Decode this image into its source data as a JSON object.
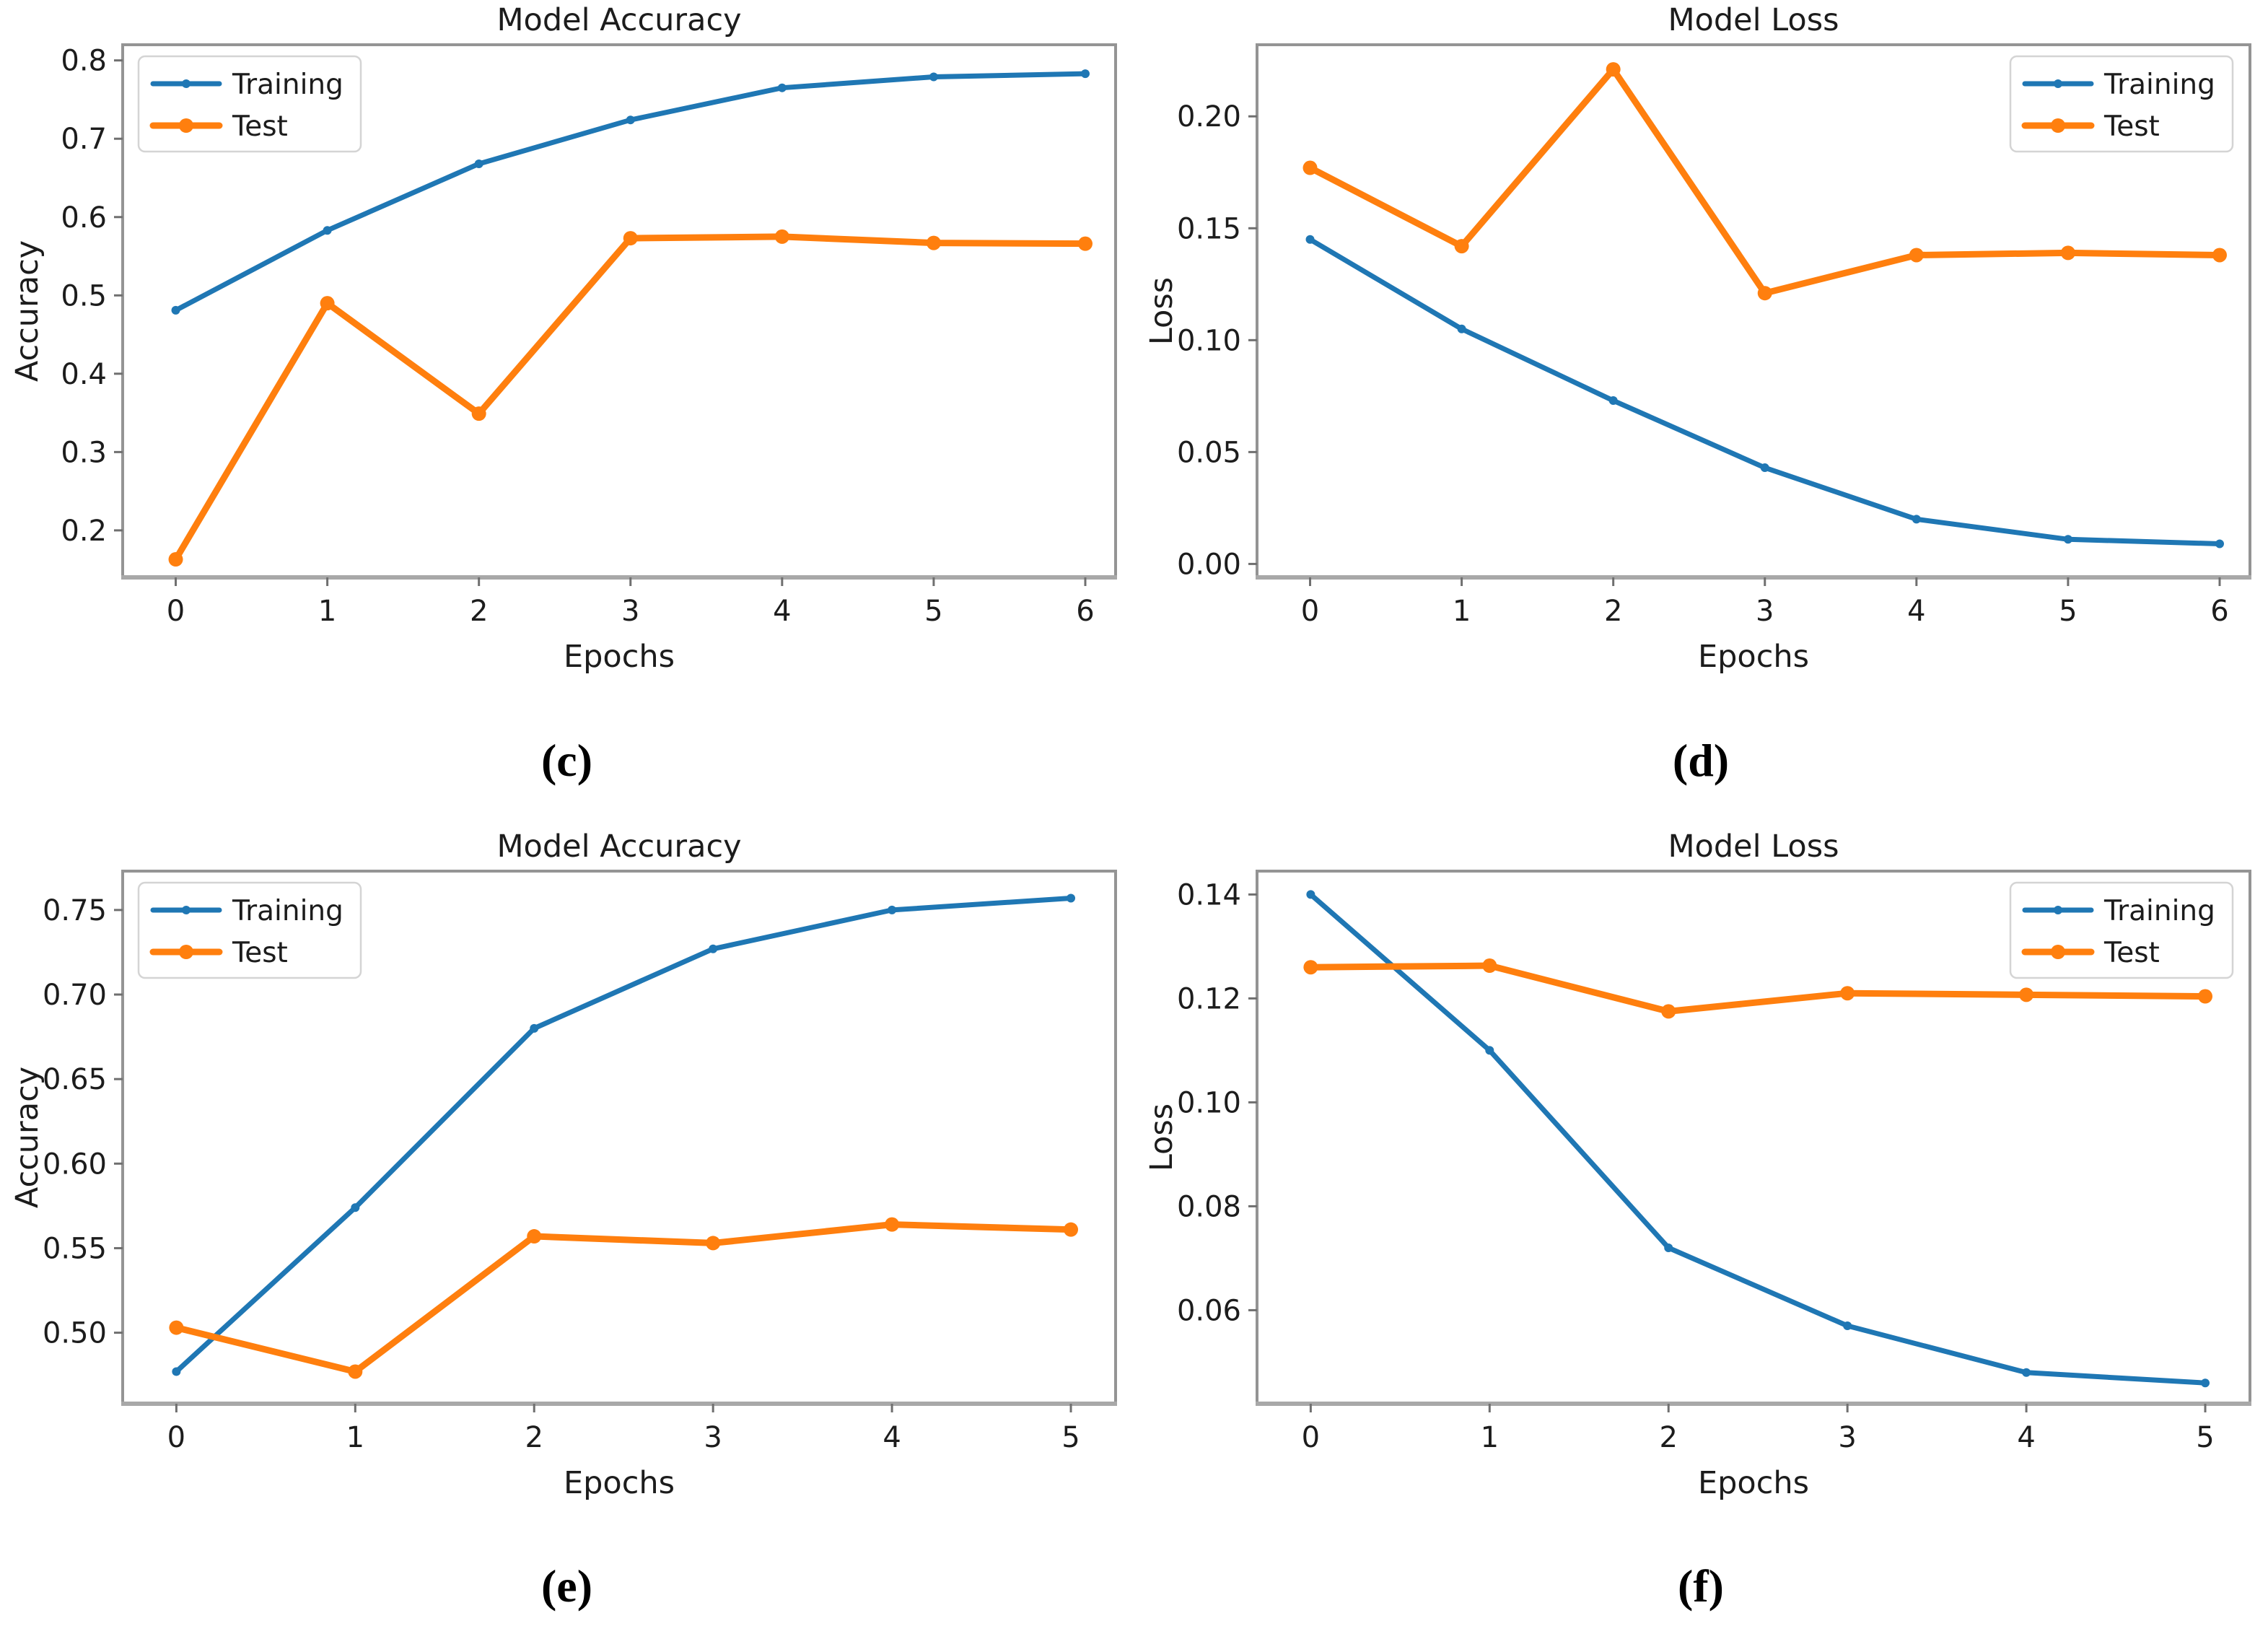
{
  "figure": {
    "background": "#ffffff",
    "text_color": "#1c1c1c",
    "spine_color": "#949494",
    "legend_border_color": "#d4d4d4",
    "training_color": "#1f77b4",
    "test_color": "#ff7f0e"
  },
  "chart_data": [
    {
      "type": "line",
      "panel": "c",
      "caption": "(c)",
      "title": "Model Accuracy",
      "xlabel": "Epochs",
      "ylabel": "Accuracy",
      "grid": false,
      "legend": {
        "position": "top-left",
        "entries": [
          "Training",
          "Test"
        ]
      },
      "x": [
        0,
        1,
        2,
        3,
        4,
        5,
        6
      ],
      "xtick_labels": [
        "0",
        "1",
        "2",
        "3",
        "4",
        "5",
        "6"
      ],
      "ytick_values": [
        0.2,
        0.3,
        0.4,
        0.5,
        0.6,
        0.7,
        0.8
      ],
      "ytick_labels": [
        "0.2",
        "0.3",
        "0.4",
        "0.5",
        "0.6",
        "0.7",
        "0.8"
      ],
      "xlim": [
        -0.35,
        6.2
      ],
      "ylim": [
        0.14,
        0.82
      ],
      "series": [
        {
          "name": "Training",
          "color": "#1f77b4",
          "values": [
            0.481,
            0.583,
            0.668,
            0.724,
            0.765,
            0.779,
            0.783
          ]
        },
        {
          "name": "Test",
          "color": "#ff7f0e",
          "values": [
            0.163,
            0.49,
            0.349,
            0.573,
            0.575,
            0.567,
            0.566
          ]
        }
      ]
    },
    {
      "type": "line",
      "panel": "d",
      "caption": "(d)",
      "title": "Model Loss",
      "xlabel": "Epochs",
      "ylabel": "Loss",
      "grid": false,
      "legend": {
        "position": "top-right",
        "entries": [
          "Training",
          "Test"
        ]
      },
      "x": [
        0,
        1,
        2,
        3,
        4,
        5,
        6
      ],
      "xtick_labels": [
        "0",
        "1",
        "2",
        "3",
        "4",
        "5",
        "6"
      ],
      "ytick_values": [
        0.0,
        0.05,
        0.1,
        0.15,
        0.2
      ],
      "ytick_labels": [
        "0.00",
        "0.05",
        "0.10",
        "0.15",
        "0.20"
      ],
      "xlim": [
        -0.35,
        6.2
      ],
      "ylim": [
        -0.006,
        0.232
      ],
      "series": [
        {
          "name": "Training",
          "color": "#1f77b4",
          "values": [
            0.145,
            0.105,
            0.073,
            0.043,
            0.02,
            0.011,
            0.009
          ]
        },
        {
          "name": "Test",
          "color": "#ff7f0e",
          "values": [
            0.177,
            0.142,
            0.221,
            0.121,
            0.138,
            0.139,
            0.138
          ]
        }
      ]
    },
    {
      "type": "line",
      "panel": "e",
      "caption": "(e)",
      "title": "Model Accuracy",
      "xlabel": "Epochs",
      "ylabel": "Accuracy",
      "grid": false,
      "legend": {
        "position": "top-left",
        "entries": [
          "Training",
          "Test"
        ]
      },
      "x": [
        0,
        1,
        2,
        3,
        4,
        5
      ],
      "xtick_labels": [
        "0",
        "1",
        "2",
        "3",
        "4",
        "5"
      ],
      "ytick_values": [
        0.5,
        0.55,
        0.6,
        0.65,
        0.7,
        0.75
      ],
      "ytick_labels": [
        "0.50",
        "0.55",
        "0.60",
        "0.65",
        "0.70",
        "0.75"
      ],
      "xlim": [
        -0.3,
        5.25
      ],
      "ylim": [
        0.458,
        0.773
      ],
      "series": [
        {
          "name": "Training",
          "color": "#1f77b4",
          "values": [
            0.477,
            0.574,
            0.68,
            0.727,
            0.75,
            0.757
          ]
        },
        {
          "name": "Test",
          "color": "#ff7f0e",
          "values": [
            0.503,
            0.477,
            0.557,
            0.553,
            0.564,
            0.561
          ]
        }
      ]
    },
    {
      "type": "line",
      "panel": "f",
      "caption": "(f)",
      "title": "Model Loss",
      "xlabel": "Epochs",
      "ylabel": "Loss",
      "grid": false,
      "legend": {
        "position": "top-right",
        "entries": [
          "Training",
          "Test"
        ]
      },
      "x": [
        0,
        1,
        2,
        3,
        4,
        5
      ],
      "xtick_labels": [
        "0",
        "1",
        "2",
        "3",
        "4",
        "5"
      ],
      "ytick_values": [
        0.06,
        0.08,
        0.1,
        0.12,
        0.14
      ],
      "ytick_labels": [
        "0.06",
        "0.08",
        "0.10",
        "0.12",
        "0.14"
      ],
      "xlim": [
        -0.3,
        5.25
      ],
      "ylim": [
        0.042,
        0.1445
      ],
      "series": [
        {
          "name": "Training",
          "color": "#1f77b4",
          "values": [
            0.14,
            0.11,
            0.072,
            0.057,
            0.048,
            0.046
          ]
        },
        {
          "name": "Test",
          "color": "#ff7f0e",
          "values": [
            0.126,
            0.1263,
            0.1175,
            0.121,
            0.1207,
            0.1204
          ]
        }
      ]
    }
  ]
}
